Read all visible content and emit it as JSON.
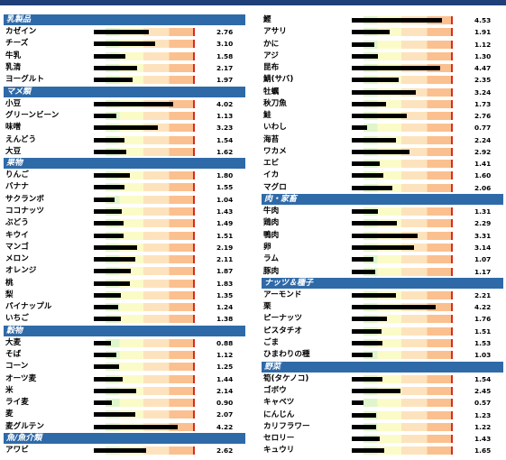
{
  "scale_max": 5,
  "left": [
    {
      "section": "乳製品",
      "items": [
        {
          "name": "カゼイン",
          "value": 2.76
        },
        {
          "name": "チーズ",
          "value": 3.1
        },
        {
          "name": "牛乳",
          "value": 1.58
        },
        {
          "name": "乳清",
          "value": 2.17
        },
        {
          "name": "ヨーグルト",
          "value": 1.97
        }
      ]
    },
    {
      "section": "マメ類",
      "items": [
        {
          "name": "小豆",
          "value": 4.02
        },
        {
          "name": "グリーンビーン",
          "value": 1.13
        },
        {
          "name": "味噌",
          "value": 3.23
        },
        {
          "name": "えんどう",
          "value": 1.54
        },
        {
          "name": "大豆",
          "value": 1.62
        }
      ]
    },
    {
      "section": "果物",
      "items": [
        {
          "name": "りんご",
          "value": 1.8
        },
        {
          "name": "バナナ",
          "value": 1.55
        },
        {
          "name": "サクランボ",
          "value": 1.04
        },
        {
          "name": "ココナッツ",
          "value": 1.43
        },
        {
          "name": "ぶどう",
          "value": 1.49
        },
        {
          "name": "キウイ",
          "value": 1.51
        },
        {
          "name": "マンゴ",
          "value": 2.19
        },
        {
          "name": "メロン",
          "value": 2.11
        },
        {
          "name": "オレンジ",
          "value": 1.87
        },
        {
          "name": "桃",
          "value": 1.83
        },
        {
          "name": "梨",
          "value": 1.35
        },
        {
          "name": "パイナップル",
          "value": 1.24
        },
        {
          "name": "いちご",
          "value": 1.38
        }
      ]
    },
    {
      "section": "穀物",
      "items": [
        {
          "name": "大麦",
          "value": 0.88
        },
        {
          "name": "そば",
          "value": 1.12
        },
        {
          "name": "コーン",
          "value": 1.25
        },
        {
          "name": "オーツ麦",
          "value": 1.44
        },
        {
          "name": "米",
          "value": 2.14
        },
        {
          "name": "ライ麦",
          "value": 0.9
        },
        {
          "name": "麦",
          "value": 2.07
        },
        {
          "name": "麦グルテン",
          "value": 4.22
        }
      ]
    },
    {
      "section": "魚/魚介類",
      "items": [
        {
          "name": "アワビ",
          "value": 2.62
        }
      ]
    }
  ],
  "right": [
    {
      "section": "",
      "items": [
        {
          "name": "鰹",
          "value": 4.53
        },
        {
          "name": "アサリ",
          "value": 1.91
        },
        {
          "name": "かに",
          "value": 1.12
        },
        {
          "name": "アジ",
          "value": 1.3
        },
        {
          "name": "昆布",
          "value": 4.47
        },
        {
          "name": "鯖(サバ)",
          "value": 2.35
        },
        {
          "name": "牡蠣",
          "value": 3.24
        },
        {
          "name": "秋刀魚",
          "value": 1.73
        },
        {
          "name": "鮭",
          "value": 2.76
        },
        {
          "name": "いわし",
          "value": 0.77
        },
        {
          "name": "海苔",
          "value": 2.24
        },
        {
          "name": "ワカメ",
          "value": 2.92
        },
        {
          "name": "エビ",
          "value": 1.41
        },
        {
          "name": "イカ",
          "value": 1.6
        },
        {
          "name": "マグロ",
          "value": 2.06
        }
      ]
    },
    {
      "section": "肉・家畜",
      "items": [
        {
          "name": "牛肉",
          "value": 1.31
        },
        {
          "name": "鶏肉",
          "value": 2.29
        },
        {
          "name": "鴨肉",
          "value": 3.31
        },
        {
          "name": "卵",
          "value": 3.14
        },
        {
          "name": "ラム",
          "value": 1.07
        },
        {
          "name": "豚肉",
          "value": 1.17
        }
      ]
    },
    {
      "section": "ナッツ＆種子",
      "items": [
        {
          "name": "アーモンド",
          "value": 2.21
        },
        {
          "name": "栗",
          "value": 4.22
        },
        {
          "name": "ピーナッツ",
          "value": 1.76
        },
        {
          "name": "ピスタチオ",
          "value": 1.51
        },
        {
          "name": "ごま",
          "value": 1.53
        },
        {
          "name": "ひまわりの種",
          "value": 1.03
        }
      ]
    },
    {
      "section": "野菜",
      "items": [
        {
          "name": "筍(タケノコ)",
          "value": 1.54
        },
        {
          "name": "ゴボウ",
          "value": 2.45
        },
        {
          "name": "キャベツ",
          "value": 0.57
        },
        {
          "name": "にんじん",
          "value": 1.23
        },
        {
          "name": "カリフラワー",
          "value": 1.22
        },
        {
          "name": "セロリー",
          "value": 1.43
        },
        {
          "name": "キュウリ",
          "value": 1.65
        }
      ]
    }
  ]
}
